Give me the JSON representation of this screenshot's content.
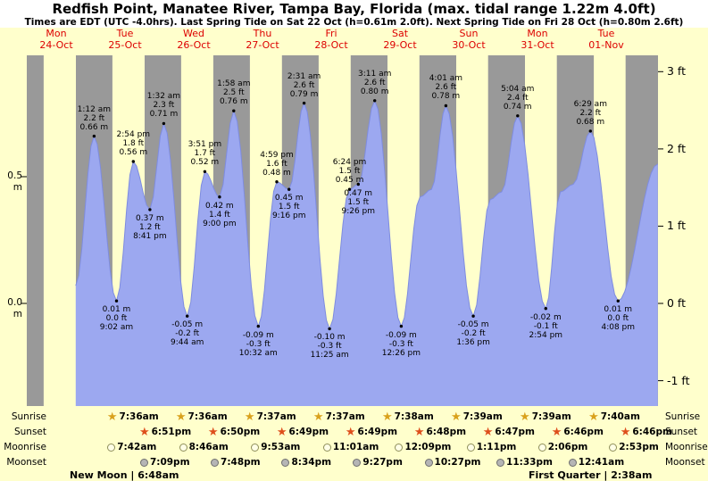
{
  "title": "Redfish Point, Manatee River, Tampa Bay, Florida (max. tidal range 1.22m 4.0ft)",
  "subtitle": "Times are EDT (UTC -4.0hrs). Last Spring Tide on Sat 22 Oct (h=0.61m 2.0ft). Next Spring Tide on Fri 28 Oct (h=0.80m 2.6ft)",
  "colors": {
    "page_bg": "#FFFFCC",
    "header_bg": "#FFFFFF",
    "plot_bg": "#999999",
    "daylight_band": "#FFFFCC",
    "tide_fill": "#9CA8F0",
    "tide_edge": "#7E8CE0",
    "day_label_red": "#DD0000"
  },
  "days": [
    {
      "name": "Mon",
      "date": "24-Oct"
    },
    {
      "name": "Tue",
      "date": "25-Oct"
    },
    {
      "name": "Wed",
      "date": "26-Oct"
    },
    {
      "name": "Thu",
      "date": "27-Oct"
    },
    {
      "name": "Fri",
      "date": "28-Oct"
    },
    {
      "name": "Sat",
      "date": "29-Oct"
    },
    {
      "name": "Sun",
      "date": "30-Oct"
    },
    {
      "name": "Mon",
      "date": "31-Oct"
    },
    {
      "name": "Tue",
      "date": "01-Nov"
    }
  ],
  "axes": {
    "left": [
      {
        "value": 0.5,
        "label": "0.5 m"
      },
      {
        "value": 0.0,
        "label": "0.0 m"
      }
    ],
    "right": [
      {
        "value": 3,
        "label": "3 ft"
      },
      {
        "value": 2,
        "label": "2 ft"
      },
      {
        "value": 1,
        "label": "1 ft"
      },
      {
        "value": 0,
        "label": "0 ft"
      },
      {
        "value": -1,
        "label": "-1 ft"
      }
    ]
  },
  "chart_data": {
    "type": "area",
    "y_unit_left": "m",
    "y_unit_right": "ft",
    "x_axis": "days, Mon 24-Oct through Tue 01-Nov",
    "curve": [
      {
        "day": 0,
        "time": "6:48 pm",
        "m": 0.07,
        "type": "interp"
      },
      {
        "day": 1,
        "time": "1:12 am",
        "m": 0.66,
        "type": "high",
        "ft_label": "2.2 ft",
        "m_label": "0.66 m"
      },
      {
        "day": 1,
        "time": "9:02 am",
        "m": 0.01,
        "type": "low",
        "ft_label": "0.0 ft",
        "m_label": "0.01 m"
      },
      {
        "day": 1,
        "time": "2:54 pm",
        "m": 0.56,
        "type": "high",
        "ft_label": "1.8 ft",
        "m_label": "0.56 m"
      },
      {
        "day": 1,
        "time": "8:41 pm",
        "m": 0.37,
        "type": "low",
        "ft_label": "1.2 ft",
        "m_label": "0.37 m"
      },
      {
        "day": 2,
        "time": "1:32 am",
        "m": 0.71,
        "type": "high",
        "ft_label": "2.3 ft",
        "m_label": "0.71 m"
      },
      {
        "day": 2,
        "time": "9:44 am",
        "m": -0.05,
        "type": "low",
        "ft_label": "-0.2 ft",
        "m_label": "-0.05 m"
      },
      {
        "day": 2,
        "time": "3:51 pm",
        "m": 0.52,
        "type": "high",
        "ft_label": "1.7 ft",
        "m_label": "0.52 m"
      },
      {
        "day": 2,
        "time": "9:00 pm",
        "m": 0.42,
        "type": "low",
        "ft_label": "1.4 ft",
        "m_label": "0.42 m"
      },
      {
        "day": 3,
        "time": "1:58 am",
        "m": 0.76,
        "type": "high",
        "ft_label": "2.5 ft",
        "m_label": "0.76 m"
      },
      {
        "day": 3,
        "time": "10:32 am",
        "m": -0.09,
        "type": "low",
        "ft_label": "-0.3 ft",
        "m_label": "-0.09 m"
      },
      {
        "day": 3,
        "time": "4:59 pm",
        "m": 0.48,
        "type": "high",
        "ft_label": "1.6 ft",
        "m_label": "0.48 m"
      },
      {
        "day": 3,
        "time": "9:16 pm",
        "m": 0.45,
        "type": "low",
        "ft_label": "1.5 ft",
        "m_label": "0.45 m"
      },
      {
        "day": 4,
        "time": "2:31 am",
        "m": 0.79,
        "type": "high",
        "ft_label": "2.6 ft",
        "m_label": "0.79 m"
      },
      {
        "day": 4,
        "time": "11:25 am",
        "m": -0.1,
        "type": "low",
        "ft_label": "-0.3 ft",
        "m_label": "-0.10 m"
      },
      {
        "day": 4,
        "time": "6:24 pm",
        "m": 0.45,
        "type": "high",
        "ft_label": "1.5 ft",
        "m_label": "0.45 m"
      },
      {
        "day": 4,
        "time": "9:26 pm",
        "m": 0.47,
        "type": "low",
        "ft_label": "1.5 ft",
        "m_label": "0.47 m"
      },
      {
        "day": 5,
        "time": "3:11 am",
        "m": 0.8,
        "type": "high",
        "ft_label": "2.6 ft",
        "m_label": "0.80 m"
      },
      {
        "day": 5,
        "time": "12:26 pm",
        "m": -0.09,
        "type": "low",
        "ft_label": "-0.3 ft",
        "m_label": "-0.09 m"
      },
      {
        "day": 5,
        "time": "7:00 pm",
        "m": 0.42,
        "type": "interp"
      },
      {
        "day": 5,
        "time": "11:00 pm",
        "m": 0.45,
        "type": "interp"
      },
      {
        "day": 6,
        "time": "4:01 am",
        "m": 0.78,
        "type": "high",
        "ft_label": "2.6 ft",
        "m_label": "0.78 m"
      },
      {
        "day": 6,
        "time": "1:36 pm",
        "m": -0.05,
        "type": "low",
        "ft_label": "-0.2 ft",
        "m_label": "-0.05 m"
      },
      {
        "day": 6,
        "time": "7:30 pm",
        "m": 0.41,
        "type": "interp"
      },
      {
        "day": 6,
        "time": "11:30 pm",
        "m": 0.44,
        "type": "interp"
      },
      {
        "day": 7,
        "time": "5:04 am",
        "m": 0.74,
        "type": "high",
        "ft_label": "2.4 ft",
        "m_label": "0.74 m"
      },
      {
        "day": 7,
        "time": "2:54 pm",
        "m": -0.02,
        "type": "low",
        "ft_label": "-0.1 ft",
        "m_label": "-0.02 m"
      },
      {
        "day": 7,
        "time": "8:00 pm",
        "m": 0.44,
        "type": "interp"
      },
      {
        "day": 8,
        "time": "12:30 am",
        "m": 0.47,
        "type": "interp"
      },
      {
        "day": 8,
        "time": "6:29 am",
        "m": 0.68,
        "type": "high",
        "ft_label": "2.2 ft",
        "m_label": "0.68 m"
      },
      {
        "day": 8,
        "time": "4:08 pm",
        "m": 0.01,
        "type": "low",
        "ft_label": "0.0 ft",
        "m_label": "0.01 m"
      },
      {
        "day": 9,
        "time": "6:00 am",
        "m": 0.55,
        "type": "interp"
      }
    ]
  },
  "sun_moon": {
    "rows": [
      {
        "label": "Sunrise",
        "icon": "sunrise-star-icon",
        "entries": [
          {
            "day": 0,
            "time": "7:36am",
            "show": false
          },
          {
            "day": 1,
            "time": "7:36am"
          },
          {
            "day": 2,
            "time": "7:36am"
          },
          {
            "day": 3,
            "time": "7:37am"
          },
          {
            "day": 4,
            "time": "7:37am"
          },
          {
            "day": 5,
            "time": "7:38am"
          },
          {
            "day": 6,
            "time": "7:39am"
          },
          {
            "day": 7,
            "time": "7:39am"
          },
          {
            "day": 8,
            "time": "7:40am"
          }
        ]
      },
      {
        "label": "Sunset",
        "icon": "sunset-star-icon",
        "entries": [
          {
            "day": 0,
            "time": "6:52pm",
            "show": false
          },
          {
            "day": 1,
            "time": "6:51pm"
          },
          {
            "day": 2,
            "time": "6:50pm"
          },
          {
            "day": 3,
            "time": "6:49pm"
          },
          {
            "day": 4,
            "time": "6:49pm"
          },
          {
            "day": 5,
            "time": "6:48pm"
          },
          {
            "day": 6,
            "time": "6:47pm"
          },
          {
            "day": 7,
            "time": "6:46pm"
          },
          {
            "day": 8,
            "time": "6:46pm"
          }
        ]
      },
      {
        "label": "Moonrise",
        "icon": "moonrise-circle-icon",
        "entries": [
          {
            "day": 1,
            "time": "7:42am"
          },
          {
            "day": 2,
            "time": "8:46am"
          },
          {
            "day": 3,
            "time": "9:53am"
          },
          {
            "day": 4,
            "time": "11:01am"
          },
          {
            "day": 5,
            "time": "12:09pm"
          },
          {
            "day": 6,
            "time": "1:11pm"
          },
          {
            "day": 7,
            "time": "2:06pm"
          },
          {
            "day": 8,
            "time": "2:53pm"
          }
        ]
      },
      {
        "label": "Moonset",
        "icon": "moonset-circle-icon",
        "entries": [
          {
            "day": 1,
            "time": "7:09pm"
          },
          {
            "day": 2,
            "time": "7:48pm"
          },
          {
            "day": 3,
            "time": "8:34pm"
          },
          {
            "day": 4,
            "time": "9:27pm"
          },
          {
            "day": 5,
            "time": "10:27pm"
          },
          {
            "day": 6,
            "time": "11:33pm"
          },
          {
            "day": 8,
            "time": "12:41am"
          }
        ]
      }
    ],
    "footnote_left": "New Moon | 6:48am",
    "footnote_right": "First Quarter | 2:38am"
  }
}
